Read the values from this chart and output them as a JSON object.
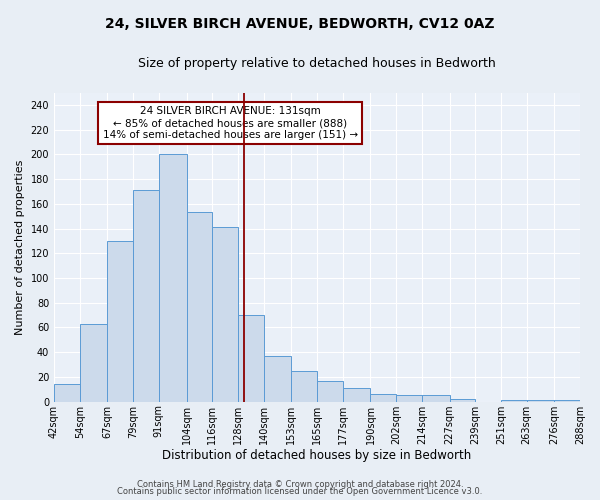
{
  "title": "24, SILVER BIRCH AVENUE, BEDWORTH, CV12 0AZ",
  "subtitle": "Size of property relative to detached houses in Bedworth",
  "xlabel": "Distribution of detached houses by size in Bedworth",
  "ylabel": "Number of detached properties",
  "bar_edges": [
    42,
    54,
    67,
    79,
    91,
    104,
    116,
    128,
    140,
    153,
    165,
    177,
    190,
    202,
    214,
    227,
    239,
    251,
    263,
    276,
    288
  ],
  "bar_heights": [
    14,
    63,
    130,
    171,
    200,
    153,
    141,
    70,
    37,
    25,
    17,
    11,
    6,
    5,
    5,
    2,
    0,
    1,
    1,
    1
  ],
  "bar_color": "#ccdaeb",
  "bar_edge_color": "#5b9bd5",
  "vline_x": 131,
  "vline_color": "#8b0000",
  "ylim": [
    0,
    250
  ],
  "yticks": [
    0,
    20,
    40,
    60,
    80,
    100,
    120,
    140,
    160,
    180,
    200,
    220,
    240
  ],
  "tick_labels": [
    "42sqm",
    "54sqm",
    "67sqm",
    "79sqm",
    "91sqm",
    "104sqm",
    "116sqm",
    "128sqm",
    "140sqm",
    "153sqm",
    "165sqm",
    "177sqm",
    "190sqm",
    "202sqm",
    "214sqm",
    "227sqm",
    "239sqm",
    "251sqm",
    "263sqm",
    "276sqm",
    "288sqm"
  ],
  "annotation_box_text": "24 SILVER BIRCH AVENUE: 131sqm\n← 85% of detached houses are smaller (888)\n14% of semi-detached houses are larger (151) →",
  "annotation_box_color": "#8b0000",
  "footer_line1": "Contains HM Land Registry data © Crown copyright and database right 2024.",
  "footer_line2": "Contains public sector information licensed under the Open Government Licence v3.0.",
  "bg_color": "#e8eef5",
  "plot_bg_color": "#eaf0f8",
  "grid_color": "#ffffff",
  "title_fontsize": 10,
  "subtitle_fontsize": 9,
  "xlabel_fontsize": 8.5,
  "ylabel_fontsize": 8,
  "tick_fontsize": 7,
  "annot_fontsize": 7.5,
  "footer_fontsize": 6
}
